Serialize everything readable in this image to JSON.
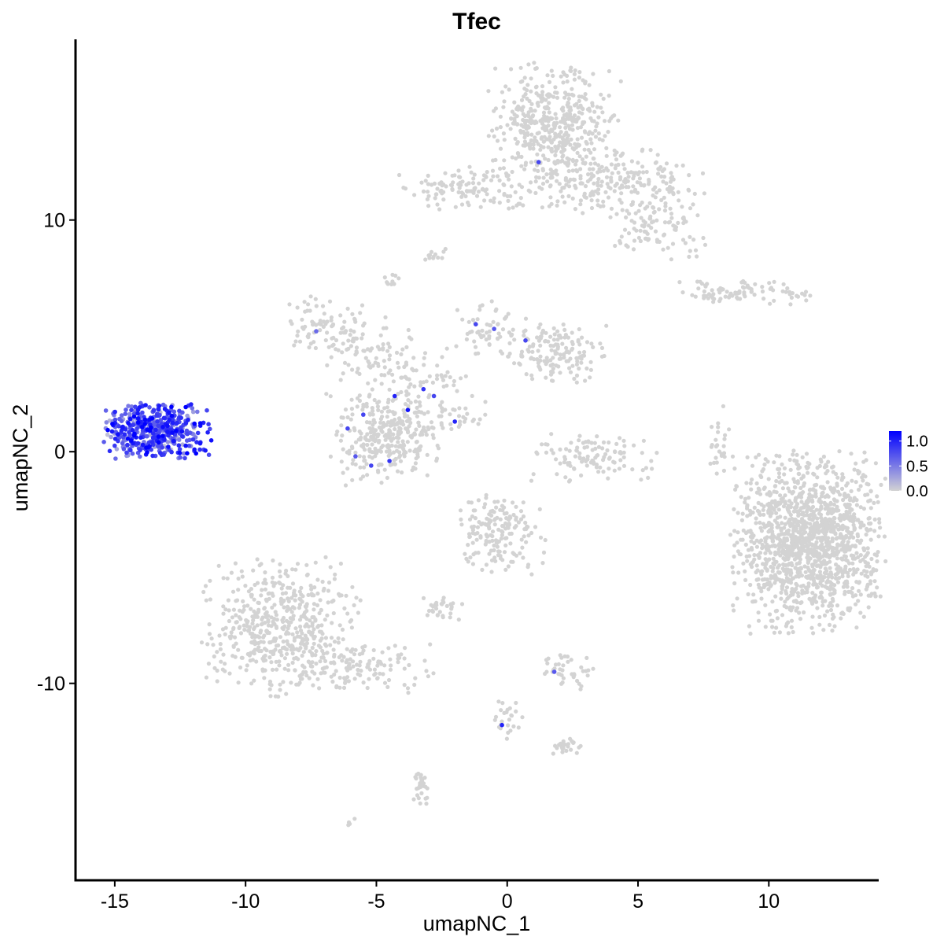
{
  "chart_data": {
    "type": "scatter",
    "title": "Tfec",
    "xlabel": "umapNC_1",
    "ylabel": "umapNC_2",
    "xlim": [
      -16.5,
      14.2
    ],
    "ylim": [
      -18.5,
      17.8
    ],
    "x_ticks": [
      -15,
      -10,
      -5,
      0,
      5,
      10
    ],
    "x_tick_labels": [
      "-15",
      "-10",
      "-5",
      "0",
      "5",
      "10"
    ],
    "y_ticks": [
      -10,
      0,
      10
    ],
    "y_tick_labels": [
      "-10",
      "0",
      "10"
    ],
    "grid": false,
    "legend": {
      "placement": "right",
      "type": "colorbar",
      "low_color": "#d3d3d3",
      "high_color": "#0000ff",
      "range": [
        0,
        1.2
      ],
      "ticks": [
        0.0,
        0.5,
        1.0
      ],
      "tick_labels": [
        "0.0",
        "0.5",
        "1.0"
      ]
    },
    "colors": {
      "low": "#d3d3d3",
      "high": "#0000ff"
    },
    "clusters": [
      {
        "center": [
          1.8,
          13.7
        ],
        "spread": [
          1.2,
          1.5
        ],
        "n": 520,
        "expression": 0
      },
      {
        "center": [
          4.5,
          11.6
        ],
        "spread": [
          1.4,
          0.7
        ],
        "n": 180,
        "expression": 0
      },
      {
        "center": [
          -1.8,
          11.4
        ],
        "spread": [
          1.1,
          0.45
        ],
        "n": 110,
        "expression": 0
      },
      {
        "center": [
          5.6,
          9.6
        ],
        "spread": [
          0.9,
          0.6
        ],
        "n": 90,
        "expression": 0
      },
      {
        "center": [
          -2.8,
          8.5
        ],
        "spread": [
          0.25,
          0.15
        ],
        "n": 12,
        "expression": 0
      },
      {
        "center": [
          -4.4,
          7.4
        ],
        "spread": [
          0.2,
          0.2
        ],
        "n": 10,
        "expression": 0
      },
      {
        "center": [
          9.0,
          6.9
        ],
        "spread": [
          1.2,
          0.25
        ],
        "n": 90,
        "expression": 0
      },
      {
        "center": [
          -6.8,
          5.4
        ],
        "spread": [
          0.9,
          0.6
        ],
        "n": 80,
        "expression": 0
      },
      {
        "center": [
          -5.3,
          4.2
        ],
        "spread": [
          0.8,
          0.9
        ],
        "n": 80,
        "expression": 0
      },
      {
        "center": [
          -0.6,
          5.4
        ],
        "spread": [
          0.6,
          0.6
        ],
        "n": 60,
        "expression": 0
      },
      {
        "center": [
          1.9,
          4.3
        ],
        "spread": [
          0.9,
          0.6
        ],
        "n": 150,
        "expression": 0
      },
      {
        "center": [
          -3.0,
          3.0
        ],
        "spread": [
          0.9,
          0.8
        ],
        "n": 60,
        "expression": 0
      },
      {
        "center": [
          -4.2,
          0.8
        ],
        "spread": [
          0.8,
          0.9
        ],
        "n": 260,
        "expression": 0
      },
      {
        "center": [
          -5.7,
          0.5
        ],
        "spread": [
          0.5,
          0.9
        ],
        "n": 60,
        "expression": 0
      },
      {
        "center": [
          -1.9,
          1.5
        ],
        "spread": [
          0.5,
          0.3
        ],
        "n": 25,
        "expression": 0
      },
      {
        "center": [
          3.3,
          -0.2
        ],
        "spread": [
          1.1,
          0.5
        ],
        "n": 110,
        "expression": 0
      },
      {
        "center": [
          8.1,
          0.3
        ],
        "spread": [
          0.2,
          0.8
        ],
        "n": 25,
        "expression": 0
      },
      {
        "center": [
          11.5,
          -3.9
        ],
        "spread": [
          1.35,
          1.8
        ],
        "n": 1400,
        "expression": 0
      },
      {
        "center": [
          -0.3,
          -3.6
        ],
        "spread": [
          0.8,
          0.8
        ],
        "n": 170,
        "expression": 0
      },
      {
        "center": [
          -2.5,
          -6.8
        ],
        "spread": [
          0.4,
          0.25
        ],
        "n": 30,
        "expression": 0
      },
      {
        "center": [
          -8.6,
          -7.6
        ],
        "spread": [
          1.4,
          1.4
        ],
        "n": 520,
        "expression": 0
      },
      {
        "center": [
          -5.6,
          -9.4
        ],
        "spread": [
          1.3,
          0.5
        ],
        "n": 120,
        "expression": 0
      },
      {
        "center": [
          2.2,
          -9.4
        ],
        "spread": [
          0.6,
          0.4
        ],
        "n": 40,
        "expression": 0
      },
      {
        "center": [
          2.2,
          -12.7
        ],
        "spread": [
          0.35,
          0.2
        ],
        "n": 25,
        "expression": 0
      },
      {
        "center": [
          0.0,
          -11.6
        ],
        "spread": [
          0.4,
          0.4
        ],
        "n": 25,
        "expression": 0
      },
      {
        "center": [
          -3.3,
          -14.5
        ],
        "spread": [
          0.15,
          0.4
        ],
        "n": 30,
        "expression": 0
      },
      {
        "center": [
          -6.0,
          -16.0
        ],
        "spread": [
          0.1,
          0.1
        ],
        "n": 4,
        "expression": 0
      },
      {
        "center": [
          -13.4,
          0.9
        ],
        "spread": [
          0.95,
          0.55
        ],
        "n": 480,
        "expression": 0.7
      }
    ],
    "highlighted_points": [
      {
        "x": 1.2,
        "y": 12.5,
        "value": 0.8
      },
      {
        "x": -7.3,
        "y": 5.2,
        "value": 0.6
      },
      {
        "x": -1.2,
        "y": 5.5,
        "value": 0.8
      },
      {
        "x": -0.5,
        "y": 5.3,
        "value": 0.7
      },
      {
        "x": 0.7,
        "y": 4.8,
        "value": 0.8
      },
      {
        "x": -3.2,
        "y": 2.7,
        "value": 0.9
      },
      {
        "x": -2.8,
        "y": 2.4,
        "value": 0.8
      },
      {
        "x": -3.8,
        "y": 1.8,
        "value": 1.1
      },
      {
        "x": -4.3,
        "y": 2.4,
        "value": 1.0
      },
      {
        "x": -2.0,
        "y": 1.3,
        "value": 1.0
      },
      {
        "x": -5.5,
        "y": 1.6,
        "value": 0.8
      },
      {
        "x": -6.1,
        "y": 1.0,
        "value": 0.8
      },
      {
        "x": -5.8,
        "y": -0.2,
        "value": 0.7
      },
      {
        "x": -5.2,
        "y": -0.6,
        "value": 0.8
      },
      {
        "x": -4.5,
        "y": -0.4,
        "value": 0.9
      },
      {
        "x": 1.8,
        "y": -9.5,
        "value": 0.7
      },
      {
        "x": -0.2,
        "y": -11.8,
        "value": 1.0
      }
    ]
  }
}
